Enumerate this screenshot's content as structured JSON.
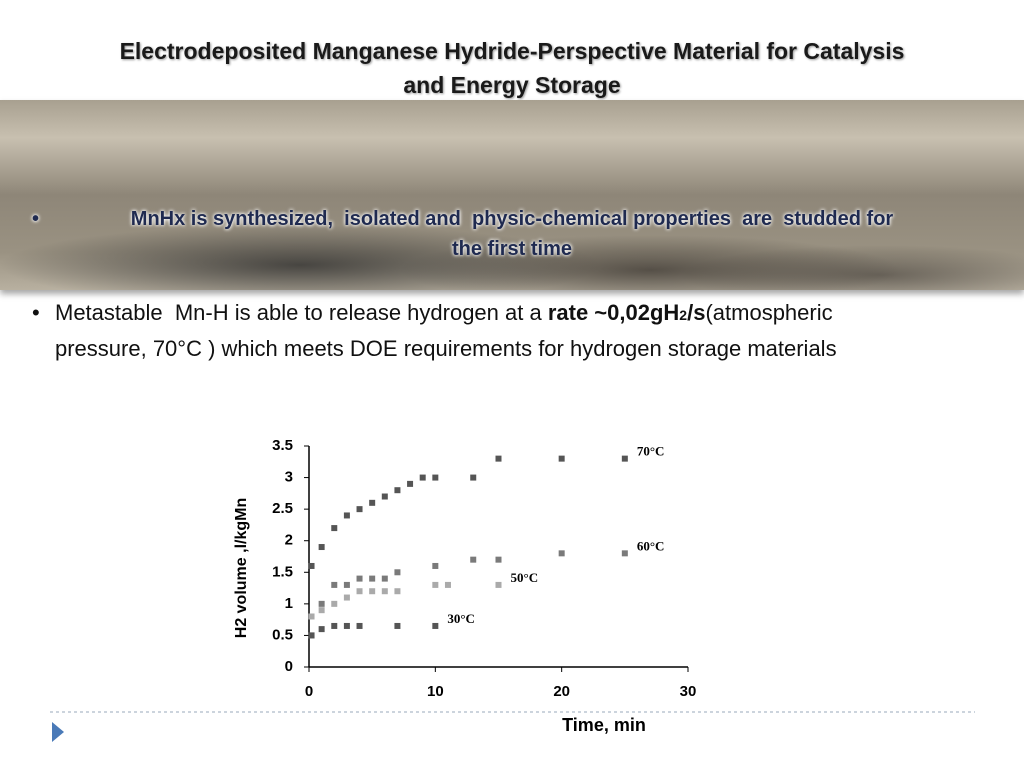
{
  "title": [
    "Electrodeposited Manganese Hydride-Perspective Material for Catalysis",
    "and Energy Storage"
  ],
  "bullet_1": [
    "MnHx is synthesized,  isolated and  physic-chemical properties  are  studded for",
    "the first time"
  ],
  "bullet_2": {
    "normal_1": "Metastable  Mn-H is able to release hydrogen at a ",
    "bold_1": "rate ~0,02gH",
    "bold_sub": "2",
    "bold_2": "/s",
    "normal_2": "(atmospheric",
    "normal_3": "pressure, 70°C ) which meets DOE requirements for hydrogen storage materials"
  },
  "chart_data": {
    "type": "scatter",
    "x_label": "Time, min",
    "y_label": "H2 volume ,l/kgMn",
    "xlim": [
      0,
      30
    ],
    "xticks": [
      0,
      10,
      20,
      30
    ],
    "ylim": [
      0,
      3.5
    ],
    "yticks": [
      0,
      0.5,
      1,
      1.5,
      2,
      2.5,
      3,
      3.5
    ],
    "grid": false,
    "series": [
      {
        "name": "70°C",
        "color": "#555555",
        "x": [
          0.2,
          1,
          2,
          3,
          4,
          5,
          6,
          7,
          8,
          9,
          10,
          13,
          15,
          20,
          25
        ],
        "values": [
          1.6,
          1.9,
          2.2,
          2.4,
          2.5,
          2.6,
          2.7,
          2.8,
          2.9,
          3.0,
          3.0,
          3.0,
          3.3,
          3.3,
          3.3
        ]
      },
      {
        "name": "60°C",
        "color": "#7a7a7a",
        "x": [
          0.2,
          1,
          2,
          3,
          4,
          5,
          6,
          7,
          10,
          13,
          15,
          20,
          25
        ],
        "values": [
          0.5,
          1.0,
          1.3,
          1.3,
          1.4,
          1.4,
          1.4,
          1.5,
          1.6,
          1.7,
          1.7,
          1.8,
          1.8
        ]
      },
      {
        "name": "50°C",
        "color": "#aaaaaa",
        "x": [
          0.2,
          1,
          2,
          3,
          4,
          5,
          6,
          7,
          10,
          11,
          15
        ],
        "values": [
          0.8,
          0.9,
          1.0,
          1.1,
          1.2,
          1.2,
          1.2,
          1.2,
          1.3,
          1.3,
          1.3
        ]
      },
      {
        "name": "30°C",
        "color": "#555555",
        "x": [
          0.2,
          1,
          2,
          3,
          4,
          7,
          10
        ],
        "values": [
          0.5,
          0.6,
          0.65,
          0.65,
          0.65,
          0.65,
          0.65
        ]
      }
    ]
  }
}
